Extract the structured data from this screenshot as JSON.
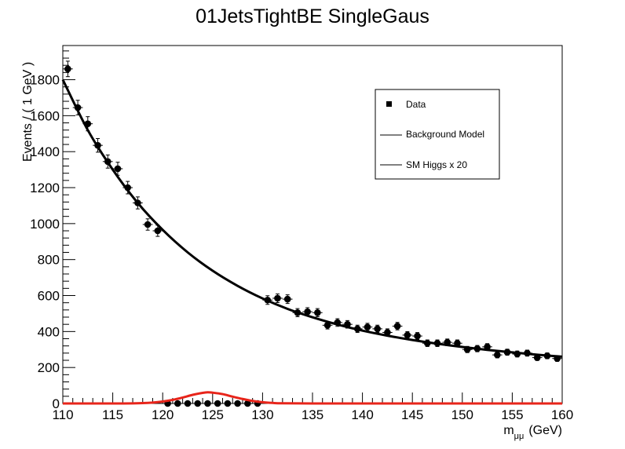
{
  "chart_data": {
    "type": "scatter",
    "title": "01JetsTightBE SingleGaus",
    "xlabel": "m",
    "xlabel_sub": "μμ",
    "xlabel_unit": "(GeV)",
    "ylabel": "Events / ( 1 GeV )",
    "xlim": [
      110,
      160
    ],
    "ylim": [
      0,
      1990
    ],
    "x_ticks": [
      110,
      115,
      120,
      125,
      130,
      135,
      140,
      145,
      150,
      155,
      160
    ],
    "y_ticks": [
      0,
      200,
      400,
      600,
      800,
      1000,
      1200,
      1400,
      1600,
      1800
    ],
    "grid": false,
    "legend_position": "top-right",
    "legend": [
      "Data",
      "Background Model",
      "SM Higgs x 20"
    ],
    "colors": {
      "data": "#000000",
      "background": "#000000",
      "signal": "#e8241a"
    },
    "series": [
      {
        "name": "Data",
        "kind": "points",
        "x": [
          110.5,
          111.5,
          112.5,
          113.5,
          114.5,
          115.5,
          116.5,
          117.5,
          118.5,
          119.5,
          120.5,
          121.5,
          122.5,
          123.5,
          124.5,
          125.5,
          126.5,
          127.5,
          128.5,
          129.5,
          130.5,
          131.5,
          132.5,
          133.5,
          134.5,
          135.5,
          136.5,
          137.5,
          138.5,
          139.5,
          140.5,
          141.5,
          142.5,
          143.5,
          144.5,
          145.5,
          146.5,
          147.5,
          148.5,
          149.5,
          150.5,
          151.5,
          152.5,
          153.5,
          154.5,
          155.5,
          156.5,
          157.5,
          158.5,
          159.5
        ],
        "y": [
          1860,
          1645,
          1555,
          1435,
          1345,
          1305,
          1200,
          1115,
          995,
          960,
          0,
          0,
          0,
          0,
          0,
          0,
          0,
          0,
          0,
          0,
          575,
          585,
          580,
          505,
          510,
          505,
          435,
          450,
          440,
          415,
          425,
          415,
          395,
          430,
          380,
          375,
          335,
          335,
          340,
          335,
          300,
          305,
          315,
          270,
          285,
          275,
          280,
          255,
          265,
          250
        ]
      },
      {
        "name": "Background Model",
        "kind": "curve",
        "x": [
          110,
          112.5,
          115,
          117.5,
          120,
          122.5,
          125,
          127.5,
          130,
          132.5,
          135,
          137.5,
          140,
          142.5,
          145,
          147.5,
          150,
          152.5,
          155,
          157.5,
          160
        ],
        "y": [
          1800,
          1520,
          1300,
          1115,
          965,
          840,
          738,
          654,
          584,
          526,
          479,
          439,
          405,
          377,
          353,
          332,
          314,
          298,
          284,
          271,
          260
        ]
      },
      {
        "name": "SM Higgs x 20",
        "kind": "curve",
        "x": [
          110,
          116,
          118,
          119,
          120,
          121,
          122,
          123,
          124,
          124.5,
          125,
          126,
          127,
          128,
          129,
          130,
          131,
          132,
          135,
          140,
          160
        ],
        "y": [
          0,
          0,
          2,
          5,
          11,
          20,
          33,
          48,
          59,
          62,
          60,
          52,
          38,
          25,
          14,
          7,
          3,
          1,
          0,
          0,
          0
        ]
      }
    ]
  }
}
